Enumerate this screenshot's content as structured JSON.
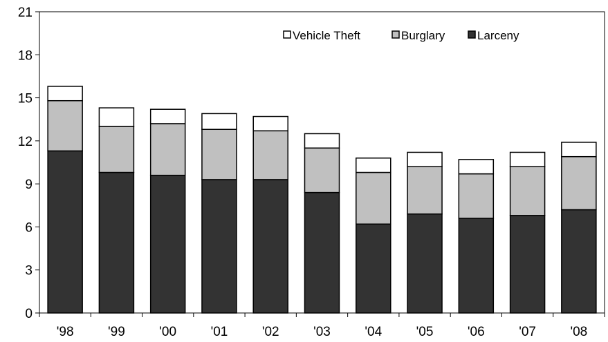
{
  "chart_data": {
    "type": "bar",
    "stacked": true,
    "categories": [
      "'98",
      "'99",
      "'00",
      "'01",
      "'02",
      "'03",
      "'04",
      "'05",
      "'06",
      "'07",
      "'08"
    ],
    "series": [
      {
        "name": "Larceny",
        "color": "#333333",
        "values": [
          11.3,
          9.8,
          9.6,
          9.3,
          9.3,
          8.4,
          6.2,
          6.9,
          6.6,
          6.8,
          7.2
        ]
      },
      {
        "name": "Burglary",
        "color": "#c0c0c0",
        "values": [
          3.5,
          3.2,
          3.6,
          3.5,
          3.4,
          3.1,
          3.6,
          3.3,
          3.1,
          3.4,
          3.7
        ]
      },
      {
        "name": "Vehicle Theft",
        "color": "#ffffff",
        "values": [
          1.0,
          1.3,
          1.0,
          1.1,
          1.0,
          1.0,
          1.0,
          1.0,
          1.0,
          1.0,
          1.0
        ]
      }
    ],
    "legend_order": [
      "Vehicle Theft",
      "Burglary",
      "Larceny"
    ],
    "legend_position": "top-right, inside plot",
    "ylim": [
      0,
      21
    ],
    "yticks": [
      "0",
      "3",
      "6",
      "9",
      "12",
      "15",
      "18",
      "21"
    ],
    "title": "",
    "xlabel": "",
    "ylabel": "",
    "grid": false
  }
}
